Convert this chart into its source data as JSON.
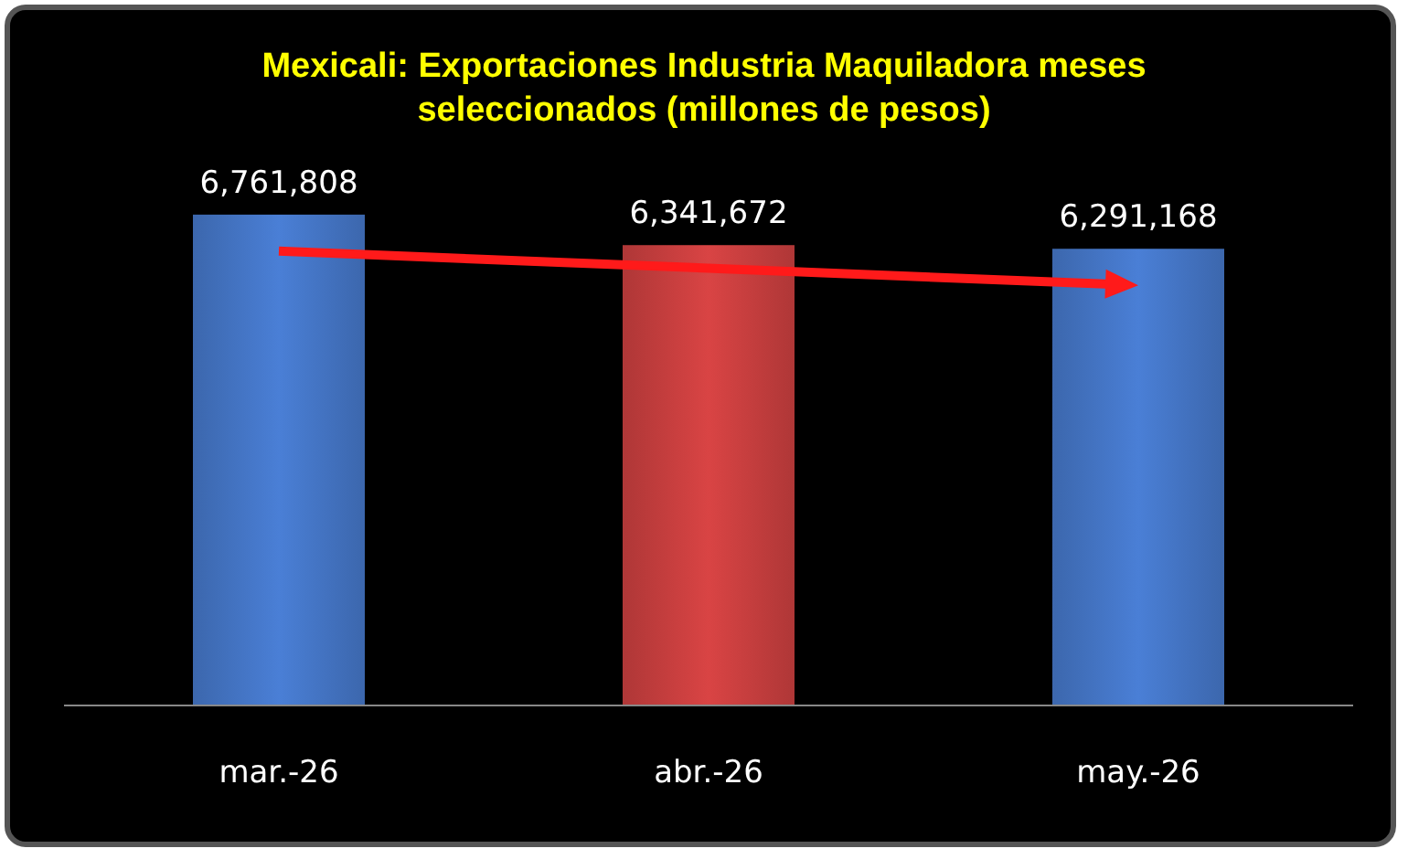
{
  "chart_data": {
    "type": "bar",
    "title": "Mexicali: Exportaciones Industria Maquiladora meses seleccionados (millones de pesos)",
    "categories": [
      "mar.-26",
      "abr.-26",
      "may.-26"
    ],
    "values": [
      6761808,
      6341672,
      6291168
    ],
    "colors": [
      "#4a7fd6",
      "#d94444",
      "#4a7fd6"
    ],
    "value_labels": [
      "6,761,808",
      "6,341,672",
      "6,291,168"
    ],
    "tick_labels": "x"
  }
}
